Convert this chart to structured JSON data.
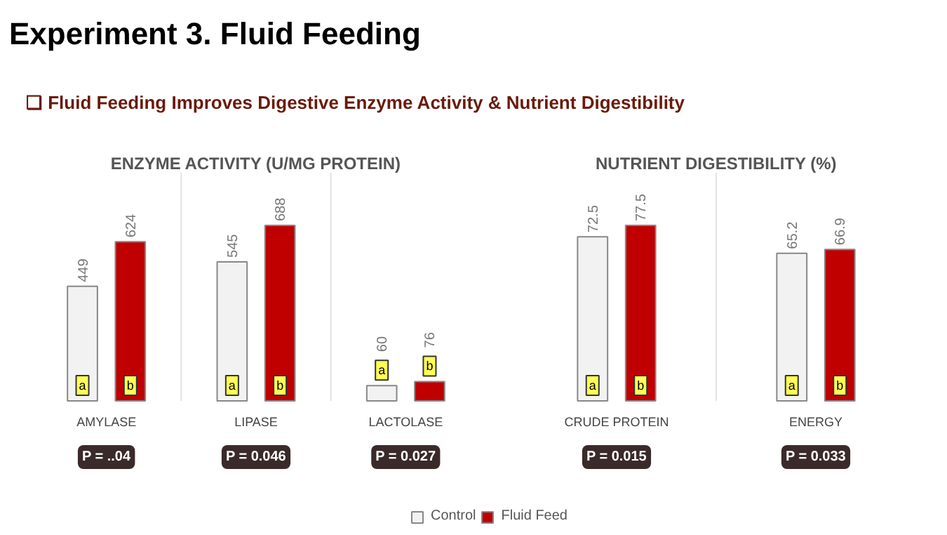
{
  "chart_data": [
    {
      "type": "bar",
      "title": "ENZYME ACTIVITY (U/MG PROTEIN)",
      "categories": [
        "AMYLASE",
        "LIPASE",
        "LACTOLASE"
      ],
      "legend": false,
      "data_labels": true,
      "series": [
        {
          "color": "#f2f2f2",
          "values": [
            449,
            545,
            60
          ]
        },
        {
          "color": "#c00000",
          "values": [
            624,
            688,
            76
          ]
        }
      ],
      "annotations": [
        "Experiment 3. Fluid Feeding",
        "❑ Fluid Feeding Improves Digestive Enzyme Activity & Nutrient Digestibility",
        "a",
        "b",
        "a",
        "b",
        "a",
        "b",
        "P = ..04",
        "P = 0.046",
        "P = 0.027"
      ]
    },
    {
      "type": "bar",
      "title": "NUTRIENT DIGESTIBILITY (%)",
      "categories": [
        "CRUDE PROTEIN",
        "ENERGY"
      ],
      "legend": "bottom",
      "data_labels": true,
      "series": [
        {
          "name": "Control",
          "color": "#f2f2f2",
          "values": [
            72.5,
            65.2
          ]
        },
        {
          "name": "Fluid Feed",
          "color": "#c00000",
          "values": [
            77.5,
            66.9
          ]
        }
      ],
      "annotations": [
        "a",
        "b",
        "a",
        "b",
        "P = 0.015",
        "P = 0.033"
      ]
    }
  ]
}
